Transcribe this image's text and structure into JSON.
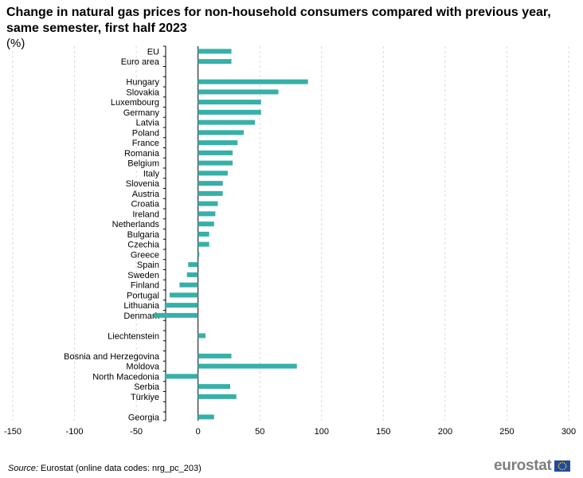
{
  "header": {
    "title": "Change in natural gas prices for non-household consumers compared with previous year, same semester, first half 2023",
    "unit": "(%)"
  },
  "footer": {
    "source_label": "Source:",
    "source_text": "Eurostat (online data codes: nrg_pc_203)",
    "logo_text": "eurostat"
  },
  "colors": {
    "bar": "#36b0a8",
    "grid": "#d9d9d9",
    "axis": "#000000"
  },
  "chart_data": {
    "type": "bar",
    "orientation": "horizontal",
    "title": "Change in natural gas prices for non-household consumers compared with previous year, same semester, first half 2023",
    "xlabel": "",
    "ylabel": "",
    "unit": "%",
    "xlim": [
      -150,
      300
    ],
    "xticks": [
      -150,
      -100,
      -50,
      0,
      50,
      100,
      150,
      200,
      250,
      300
    ],
    "grid": true,
    "categories": [
      "EU",
      "Euro area",
      "",
      "Hungary",
      "Slovakia",
      "Luxembourg",
      "Germany",
      "Latvia",
      "Poland",
      "France",
      "Romania",
      "Belgium",
      "Italy",
      "Slovenia",
      "Austria",
      "Croatia",
      "Ireland",
      "Netherlands",
      "Bulgaria",
      "Czechia",
      "Greece",
      "Spain",
      "Sweden",
      "Finland",
      "Portugal",
      "Lithuania",
      "Denmark",
      "",
      "Liechtenstein",
      "",
      "Bosnia and Herzegovina",
      "Moldova",
      "North Macedonia",
      "Serbia",
      "Türkiye",
      "",
      "Georgia"
    ],
    "values": [
      27,
      27,
      null,
      89,
      65,
      51,
      51,
      46,
      37,
      32,
      28,
      28,
      24,
      20,
      20,
      16,
      14,
      13,
      9,
      9,
      1,
      -8,
      -9,
      -15,
      -23,
      -27,
      -36,
      null,
      6,
      null,
      27,
      80,
      -27,
      26,
      31,
      null,
      13
    ]
  }
}
